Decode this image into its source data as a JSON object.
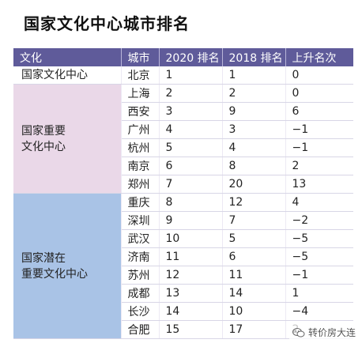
{
  "chart_data": {
    "type": "table",
    "title": "国家文化中心城市排名",
    "columns": [
      "文化",
      "城市",
      "2020 排名",
      "2018 排名",
      "上升名次"
    ],
    "groups": [
      {
        "name": "国家文化中心",
        "rows": [
          {
            "city": "北京",
            "r2020": "1",
            "r2018": "1",
            "change": "0"
          }
        ]
      },
      {
        "name": "国家重要 文化中心",
        "rows": [
          {
            "city": "上海",
            "r2020": "2",
            "r2018": "2",
            "change": "0"
          },
          {
            "city": "西安",
            "r2020": "3",
            "r2018": "9",
            "change": "6"
          },
          {
            "city": "广州",
            "r2020": "4",
            "r2018": "3",
            "change": "−1"
          },
          {
            "city": "杭州",
            "r2020": "5",
            "r2018": "4",
            "change": "−1"
          },
          {
            "city": "南京",
            "r2020": "6",
            "r2018": "8",
            "change": "2"
          },
          {
            "city": "郑州",
            "r2020": "7",
            "r2018": "20",
            "change": "13"
          }
        ]
      },
      {
        "name": "国家潜在 重要文化中心",
        "rows": [
          {
            "city": "重庆",
            "r2020": "8",
            "r2018": "12",
            "change": "4"
          },
          {
            "city": "深圳",
            "r2020": "9",
            "r2018": "7",
            "change": "−2"
          },
          {
            "city": "武汉",
            "r2020": "10",
            "r2018": "5",
            "change": "−5"
          },
          {
            "city": "济南",
            "r2020": "11",
            "r2018": "6",
            "change": "−5"
          },
          {
            "city": "苏州",
            "r2020": "12",
            "r2018": "11",
            "change": "−1"
          },
          {
            "city": "成都",
            "r2020": "13",
            "r2018": "14",
            "change": "1"
          },
          {
            "city": "长沙",
            "r2020": "14",
            "r2018": "10",
            "change": "−4"
          },
          {
            "city": "合肥",
            "r2020": "15",
            "r2018": "17",
            "change": "2"
          }
        ]
      }
    ]
  },
  "watermark": "转价房大连",
  "colors": {
    "header": "#5f5b9a",
    "group_national": "#ffffff",
    "group_important": "#ead8e8",
    "group_potential": "#a9c3e6"
  }
}
